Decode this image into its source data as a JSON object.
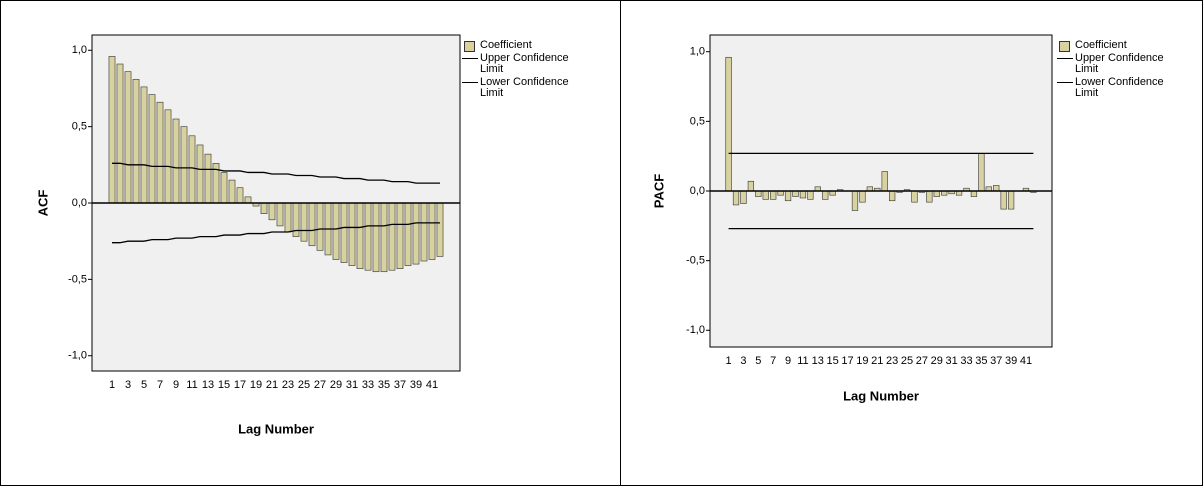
{
  "chart_data": [
    {
      "type": "bar",
      "y_label": "ACF",
      "x_label": "Lag Number",
      "categories": [
        "1",
        null,
        "3",
        null,
        "5",
        null,
        "7",
        null,
        "9",
        null,
        "11",
        null,
        "13",
        null,
        "15",
        null,
        "17",
        null,
        "19",
        null,
        "21",
        null,
        "23",
        null,
        "25",
        null,
        "27",
        null,
        "29",
        null,
        "31",
        null,
        "33",
        null,
        "35",
        null,
        "37",
        null,
        "39",
        null,
        "41",
        null
      ],
      "series": [
        {
          "name": "Coefficient",
          "type": "bar",
          "color": "#d8d2a0",
          "values": [
            0.96,
            0.91,
            0.86,
            0.81,
            0.76,
            0.71,
            0.66,
            0.61,
            0.55,
            0.5,
            0.44,
            0.38,
            0.32,
            0.26,
            0.2,
            0.15,
            0.1,
            0.04,
            -0.02,
            -0.07,
            -0.11,
            -0.15,
            -0.19,
            -0.22,
            -0.25,
            -0.28,
            -0.31,
            -0.34,
            -0.37,
            -0.39,
            -0.41,
            -0.43,
            -0.44,
            -0.45,
            -0.45,
            -0.44,
            -0.43,
            -0.41,
            -0.4,
            -0.38,
            -0.37,
            -0.35
          ]
        },
        {
          "name": "Upper Confidence Limit",
          "type": "line",
          "color": "#000000",
          "values": [
            0.26,
            0.26,
            0.25,
            0.25,
            0.25,
            0.24,
            0.24,
            0.24,
            0.23,
            0.23,
            0.23,
            0.22,
            0.22,
            0.22,
            0.21,
            0.21,
            0.21,
            0.2,
            0.2,
            0.2,
            0.19,
            0.19,
            0.19,
            0.18,
            0.18,
            0.18,
            0.17,
            0.17,
            0.17,
            0.16,
            0.16,
            0.16,
            0.15,
            0.15,
            0.15,
            0.14,
            0.14,
            0.14,
            0.13,
            0.13,
            0.13,
            0.13
          ]
        },
        {
          "name": "Lower Confidence Limit",
          "type": "line",
          "color": "#000000",
          "values": [
            -0.26,
            -0.26,
            -0.25,
            -0.25,
            -0.25,
            -0.24,
            -0.24,
            -0.24,
            -0.23,
            -0.23,
            -0.23,
            -0.22,
            -0.22,
            -0.22,
            -0.21,
            -0.21,
            -0.21,
            -0.2,
            -0.2,
            -0.2,
            -0.19,
            -0.19,
            -0.19,
            -0.18,
            -0.18,
            -0.18,
            -0.17,
            -0.17,
            -0.17,
            -0.16,
            -0.16,
            -0.16,
            -0.15,
            -0.15,
            -0.15,
            -0.14,
            -0.14,
            -0.14,
            -0.13,
            -0.13,
            -0.13,
            -0.13
          ]
        }
      ],
      "ylim": [
        -1.1,
        1.1
      ],
      "yticks": [
        {
          "value": -1.0,
          "label": "-1,0"
        },
        {
          "value": -0.5,
          "label": "-0,5"
        },
        {
          "value": 0.0,
          "label": "0,0"
        },
        {
          "value": 0.5,
          "label": "0,5"
        },
        {
          "value": 1.0,
          "label": "1,0"
        }
      ]
    },
    {
      "type": "bar",
      "y_label": "PACF",
      "x_label": "Lag Number",
      "categories": [
        "1",
        null,
        "3",
        null,
        "5",
        null,
        "7",
        null,
        "9",
        null,
        "11",
        null,
        "13",
        null,
        "15",
        null,
        "17",
        null,
        "19",
        null,
        "21",
        null,
        "23",
        null,
        "25",
        null,
        "27",
        null,
        "29",
        null,
        "31",
        null,
        "33",
        null,
        "35",
        null,
        "37",
        null,
        "39",
        null,
        "41",
        null
      ],
      "series": [
        {
          "name": "Coefficient",
          "type": "bar",
          "color": "#d8d2a0",
          "values": [
            0.96,
            -0.1,
            -0.09,
            0.07,
            -0.04,
            -0.06,
            -0.06,
            -0.03,
            -0.07,
            -0.04,
            -0.05,
            -0.06,
            0.03,
            -0.06,
            -0.03,
            0.01,
            0.0,
            -0.14,
            -0.08,
            0.03,
            0.02,
            0.14,
            -0.07,
            -0.01,
            0.01,
            -0.08,
            -0.01,
            -0.08,
            -0.04,
            -0.03,
            -0.02,
            -0.03,
            0.02,
            -0.04,
            0.27,
            0.03,
            0.04,
            -0.13,
            -0.13,
            0.0,
            0.02,
            -0.01
          ]
        },
        {
          "name": "Upper Confidence Limit",
          "type": "line",
          "color": "#000000",
          "values": [
            0.27,
            0.27,
            0.27,
            0.27,
            0.27,
            0.27,
            0.27,
            0.27,
            0.27,
            0.27,
            0.27,
            0.27,
            0.27,
            0.27,
            0.27,
            0.27,
            0.27,
            0.27,
            0.27,
            0.27,
            0.27,
            0.27,
            0.27,
            0.27,
            0.27,
            0.27,
            0.27,
            0.27,
            0.27,
            0.27,
            0.27,
            0.27,
            0.27,
            0.27,
            0.27,
            0.27,
            0.27,
            0.27,
            0.27,
            0.27,
            0.27,
            0.27
          ]
        },
        {
          "name": "Lower Confidence Limit",
          "type": "line",
          "color": "#000000",
          "values": [
            -0.27,
            -0.27,
            -0.27,
            -0.27,
            -0.27,
            -0.27,
            -0.27,
            -0.27,
            -0.27,
            -0.27,
            -0.27,
            -0.27,
            -0.27,
            -0.27,
            -0.27,
            -0.27,
            -0.27,
            -0.27,
            -0.27,
            -0.27,
            -0.27,
            -0.27,
            -0.27,
            -0.27,
            -0.27,
            -0.27,
            -0.27,
            -0.27,
            -0.27,
            -0.27,
            -0.27,
            -0.27,
            -0.27,
            -0.27,
            -0.27,
            -0.27,
            -0.27,
            -0.27,
            -0.27,
            -0.27,
            -0.27,
            -0.27
          ]
        }
      ],
      "ylim": [
        -1.12,
        1.12
      ],
      "yticks": [
        {
          "value": -1.0,
          "label": "-1,0"
        },
        {
          "value": -0.5,
          "label": "-0,5"
        },
        {
          "value": 0.0,
          "label": "0,0"
        },
        {
          "value": 0.5,
          "label": "0,5"
        },
        {
          "value": 1.0,
          "label": "1,0"
        }
      ]
    }
  ]
}
